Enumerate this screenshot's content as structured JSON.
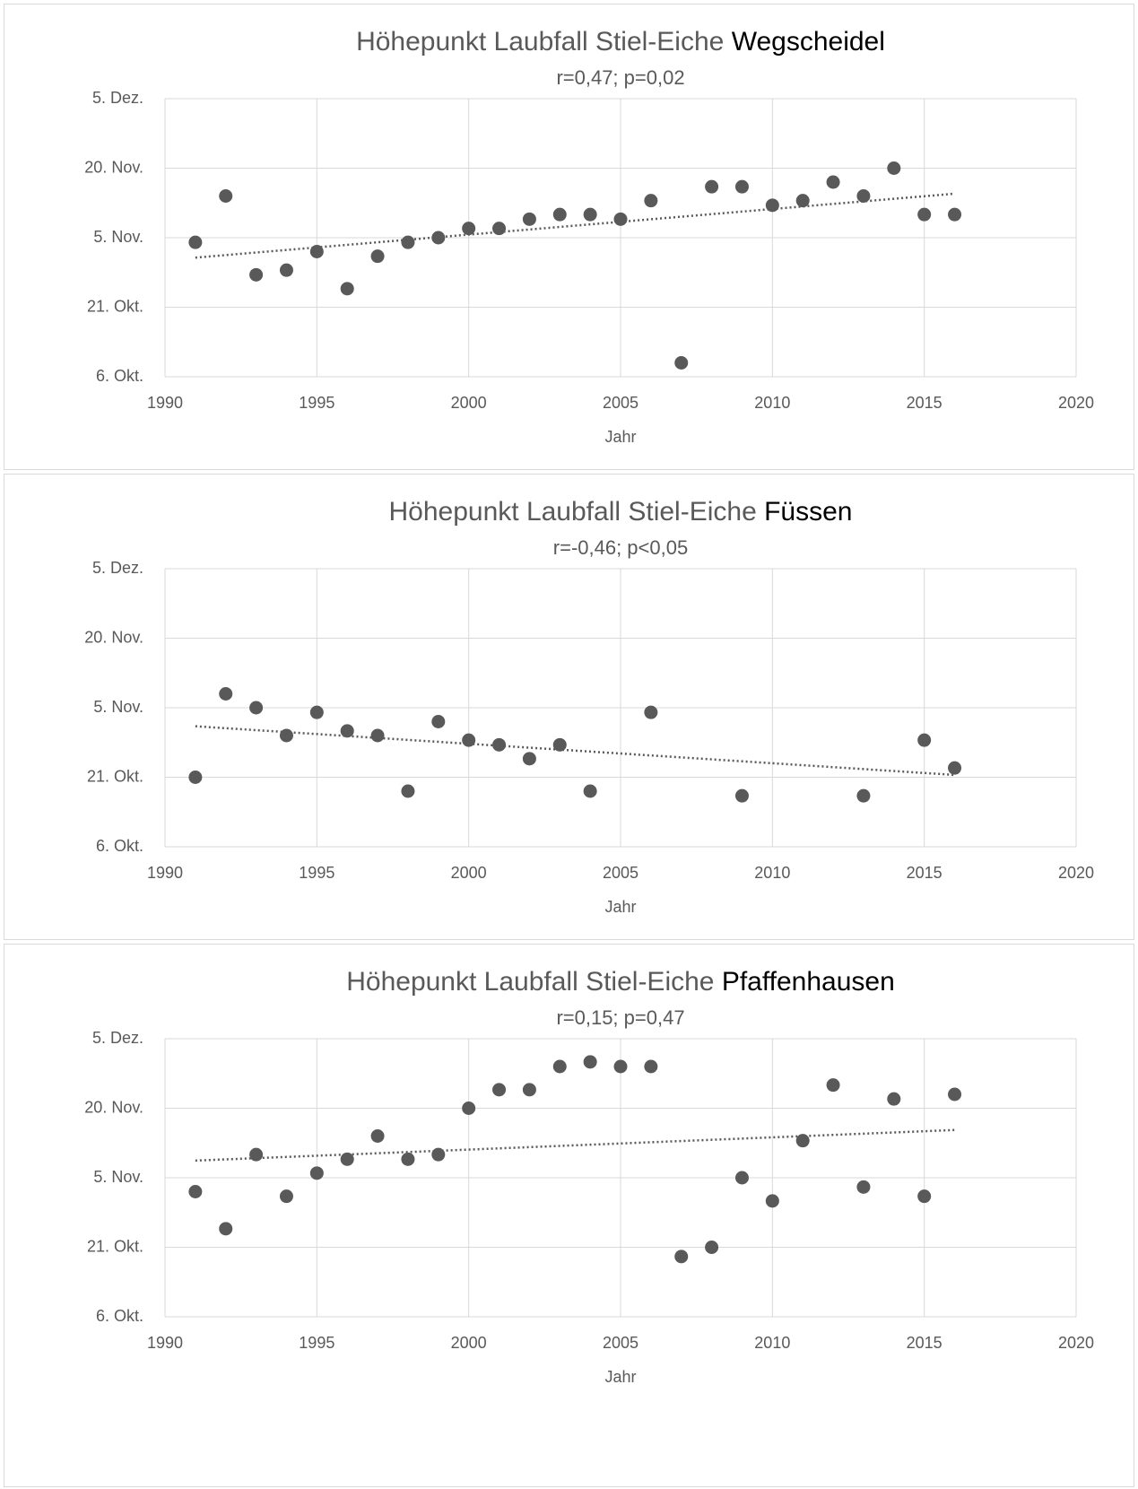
{
  "chart_data": [
    {
      "type": "scatter",
      "title": "Höhepunkt  Laubfall Stiel-Eiche",
      "title_place": "Wegscheidel",
      "subtitle": "r=0,47; p=0,02",
      "xlabel": "Jahr",
      "color": "#595959",
      "grid": true,
      "xlim": [
        1990,
        2020
      ],
      "xticks": [
        1990,
        1995,
        2000,
        2005,
        2010,
        2015,
        2020
      ],
      "ylim": [
        279,
        339
      ],
      "yticks": [
        {
          "value": 279,
          "label": "6. Okt."
        },
        {
          "value": 294,
          "label": "21. Okt."
        },
        {
          "value": 309,
          "label": "5. Nov."
        },
        {
          "value": 324,
          "label": "20. Nov."
        },
        {
          "value": 339,
          "label": "5. Dez."
        }
      ],
      "x": [
        1991,
        1992,
        1993,
        1994,
        1995,
        1996,
        1997,
        1998,
        1999,
        2000,
        2001,
        2002,
        2003,
        2004,
        2005,
        2006,
        2007,
        2008,
        2009,
        2010,
        2011,
        2012,
        2013,
        2014,
        2015,
        2016
      ],
      "values": [
        308,
        318,
        301,
        302,
        306,
        298,
        305,
        308,
        309,
        311,
        311,
        313,
        314,
        314,
        313,
        317,
        282,
        320,
        320,
        316,
        317,
        321,
        318,
        324,
        314,
        314
      ],
      "trendline": {
        "x": [
          1991,
          2016
        ],
        "values": [
          304.7,
          318.5
        ]
      }
    },
    {
      "type": "scatter",
      "title": "Höhepunkt  Laubfall Stiel-Eiche",
      "title_place": "Füssen",
      "subtitle": "r=-0,46; p<0,05",
      "xlabel": "Jahr",
      "color": "#595959",
      "grid": true,
      "xlim": [
        1990,
        2020
      ],
      "xticks": [
        1990,
        1995,
        2000,
        2005,
        2010,
        2015,
        2020
      ],
      "ylim": [
        279,
        339
      ],
      "yticks": [
        {
          "value": 279,
          "label": "6. Okt."
        },
        {
          "value": 294,
          "label": "21. Okt."
        },
        {
          "value": 309,
          "label": "5. Nov."
        },
        {
          "value": 324,
          "label": "20. Nov."
        },
        {
          "value": 339,
          "label": "5. Dez."
        }
      ],
      "x": [
        1991,
        1992,
        1993,
        1994,
        1995,
        1996,
        1997,
        1998,
        1999,
        2000,
        2001,
        2002,
        2003,
        2004,
        2006,
        2009,
        2013,
        2015,
        2016
      ],
      "values": [
        294,
        312,
        309,
        303,
        308,
        304,
        303,
        291,
        306,
        302,
        301,
        298,
        301,
        291,
        308,
        290,
        290,
        302,
        296
      ],
      "trendline": {
        "x": [
          1991,
          2016
        ],
        "values": [
          305,
          294.5
        ]
      }
    },
    {
      "type": "scatter",
      "title": "Höhepunkt  Laubfall Stiel-Eiche",
      "title_place": "Pfaffenhausen",
      "subtitle": "r=0,15; p=0,47",
      "xlabel": "Jahr",
      "color": "#595959",
      "grid": true,
      "xlim": [
        1990,
        2020
      ],
      "xticks": [
        1990,
        1995,
        2000,
        2005,
        2010,
        2015,
        2020
      ],
      "ylim": [
        279,
        339
      ],
      "yticks": [
        {
          "value": 279,
          "label": "6. Okt."
        },
        {
          "value": 294,
          "label": "21. Okt."
        },
        {
          "value": 309,
          "label": "5. Nov."
        },
        {
          "value": 324,
          "label": "20. Nov."
        },
        {
          "value": 339,
          "label": "5. Dez."
        }
      ],
      "x": [
        1991,
        1992,
        1993,
        1994,
        1995,
        1996,
        1997,
        1998,
        1999,
        2000,
        2001,
        2002,
        2003,
        2004,
        2005,
        2006,
        2007,
        2008,
        2009,
        2010,
        2011,
        2012,
        2013,
        2014,
        2015,
        2016
      ],
      "values": [
        306,
        298,
        314,
        305,
        310,
        313,
        318,
        313,
        314,
        324,
        328,
        328,
        333,
        334,
        333,
        333,
        292,
        294,
        309,
        304,
        317,
        329,
        307,
        326,
        305,
        327
      ],
      "trendline": {
        "x": [
          1991,
          2016
        ],
        "values": [
          312.7,
          319.3
        ]
      }
    }
  ]
}
